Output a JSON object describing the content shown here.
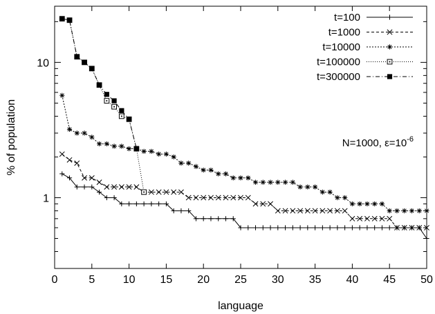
{
  "chart_data": {
    "type": "line",
    "xlabel": "language",
    "ylabel": "% of population",
    "x_axis": {
      "scale": "linear",
      "range": [
        0,
        50
      ],
      "ticks": [
        0,
        5,
        10,
        15,
        20,
        25,
        30,
        35,
        40,
        45,
        50
      ]
    },
    "y_axis": {
      "scale": "log",
      "range": [
        0.3,
        26
      ],
      "ticks": [
        1,
        10
      ]
    },
    "grid": false,
    "legend_position": "top-right",
    "annotation": {
      "prefix": "N=1000, ε=10",
      "exponent": "-6"
    },
    "series": [
      {
        "name": "t=100",
        "marker": "plus",
        "dash": "solid",
        "x": [
          1,
          2,
          3,
          4,
          5,
          6,
          7,
          8,
          9,
          10,
          11,
          12,
          13,
          14,
          15,
          16,
          17,
          18,
          19,
          20,
          21,
          22,
          23,
          24,
          25,
          26,
          27,
          28,
          29,
          30,
          31,
          32,
          33,
          34,
          35,
          36,
          37,
          38,
          39,
          40,
          41,
          42,
          43,
          44,
          45,
          46,
          47,
          48,
          49,
          50
        ],
        "y": [
          1.5,
          1.4,
          1.2,
          1.2,
          1.2,
          1.1,
          1.0,
          1.0,
          0.9,
          0.9,
          0.9,
          0.9,
          0.9,
          0.9,
          0.9,
          0.8,
          0.8,
          0.8,
          0.7,
          0.7,
          0.7,
          0.7,
          0.7,
          0.7,
          0.6,
          0.6,
          0.6,
          0.6,
          0.6,
          0.6,
          0.6,
          0.6,
          0.6,
          0.6,
          0.6,
          0.6,
          0.6,
          0.6,
          0.6,
          0.6,
          0.6,
          0.6,
          0.6,
          0.6,
          0.6,
          0.6,
          0.6,
          0.6,
          0.6,
          0.5
        ]
      },
      {
        "name": "t=1000",
        "marker": "cross",
        "dash": "dashed",
        "x": [
          1,
          2,
          3,
          4,
          5,
          6,
          7,
          8,
          9,
          10,
          11,
          12,
          13,
          14,
          15,
          16,
          17,
          18,
          19,
          20,
          21,
          22,
          23,
          24,
          25,
          26,
          27,
          28,
          29,
          30,
          31,
          32,
          33,
          34,
          35,
          36,
          37,
          38,
          39,
          40,
          41,
          42,
          43,
          44,
          45,
          46,
          47,
          48,
          49,
          50
        ],
        "y": [
          2.1,
          1.9,
          1.8,
          1.4,
          1.4,
          1.3,
          1.2,
          1.2,
          1.2,
          1.2,
          1.2,
          1.1,
          1.1,
          1.1,
          1.1,
          1.1,
          1.1,
          1.0,
          1.0,
          1.0,
          1.0,
          1.0,
          1.0,
          1.0,
          1.0,
          1.0,
          0.9,
          0.9,
          0.9,
          0.8,
          0.8,
          0.8,
          0.8,
          0.8,
          0.8,
          0.8,
          0.8,
          0.8,
          0.8,
          0.7,
          0.7,
          0.7,
          0.7,
          0.7,
          0.7,
          0.6,
          0.6,
          0.6,
          0.6,
          0.6
        ]
      },
      {
        "name": "t=10000",
        "marker": "star",
        "dash": "dotted",
        "x": [
          1,
          2,
          3,
          4,
          5,
          6,
          7,
          8,
          9,
          10,
          11,
          12,
          13,
          14,
          15,
          16,
          17,
          18,
          19,
          20,
          21,
          22,
          23,
          24,
          25,
          26,
          27,
          28,
          29,
          30,
          31,
          32,
          33,
          34,
          35,
          36,
          37,
          38,
          39,
          40,
          41,
          42,
          43,
          44,
          45,
          46,
          47,
          48,
          49,
          50
        ],
        "y": [
          5.7,
          3.2,
          3.0,
          3.0,
          2.8,
          2.5,
          2.5,
          2.4,
          2.4,
          2.3,
          2.3,
          2.2,
          2.2,
          2.1,
          2.1,
          2.0,
          1.8,
          1.8,
          1.7,
          1.6,
          1.6,
          1.5,
          1.5,
          1.4,
          1.4,
          1.4,
          1.3,
          1.3,
          1.3,
          1.3,
          1.3,
          1.3,
          1.2,
          1.2,
          1.2,
          1.1,
          1.1,
          1.0,
          1.0,
          0.9,
          0.9,
          0.9,
          0.9,
          0.9,
          0.8,
          0.8,
          0.8,
          0.8,
          0.8,
          0.8
        ]
      },
      {
        "name": "t=100000",
        "marker": "open-square",
        "dash": "fine-dotted",
        "x": [
          1,
          2,
          3,
          4,
          5,
          6,
          7,
          8,
          9,
          10,
          11,
          12
        ],
        "y": [
          21.0,
          20.5,
          11.0,
          10.0,
          9.0,
          6.8,
          5.2,
          4.7,
          4.0,
          3.8,
          2.3,
          1.1
        ]
      },
      {
        "name": "t=300000",
        "marker": "filled-square",
        "dash": "dash-dot",
        "x": [
          1,
          2,
          3,
          4,
          5,
          6,
          7,
          8,
          9,
          10,
          11
        ],
        "y": [
          21.0,
          20.5,
          11.0,
          10.0,
          9.0,
          6.8,
          5.8,
          5.2,
          4.4,
          3.8,
          2.3
        ]
      }
    ]
  }
}
